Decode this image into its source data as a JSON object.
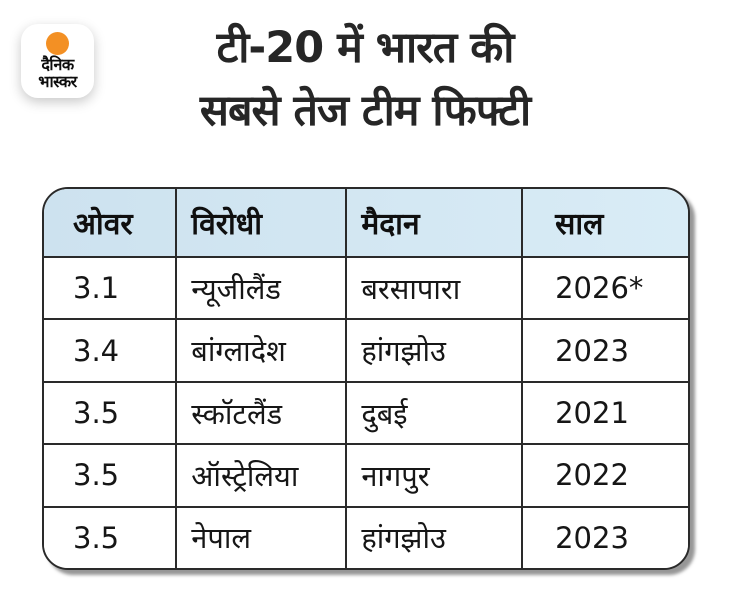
{
  "brand": {
    "name_line1": "दैनिक",
    "name_line2": "भास्कर",
    "sun_color": "#f39024"
  },
  "title": {
    "line1": "टी-20 में भारत की",
    "line2": "सबसे तेज टीम फिफ्टी"
  },
  "chart_data": {
    "type": "table",
    "title": "टी-20 में भारत की सबसे तेज टीम फिफ्टी",
    "columns": [
      "ओवर",
      "विरोधी",
      "मैदान",
      "साल"
    ],
    "rows": [
      [
        "3.1",
        "न्यूजीलैंड",
        "बरसापारा",
        "2026*"
      ],
      [
        "3.4",
        "बांग्लादेश",
        "हांगझोउ",
        "2023"
      ],
      [
        "3.5",
        "स्कॉटलैंड",
        "दुबई",
        "2021"
      ],
      [
        "3.5",
        "ऑस्ट्रेलिया",
        "नागपुर",
        "2022"
      ],
      [
        "3.5",
        "नेपाल",
        "हांगझोउ",
        "2023"
      ]
    ],
    "layout_hints": {
      "header_bg": "#cfe3ef",
      "border_color": "#2a2a2a",
      "rounded_corners": true,
      "rows_highlighted": "none"
    }
  },
  "colors": {
    "header_bg": "#cfe3ef",
    "border": "#2a2a2a",
    "accent_orange": "#f39024",
    "text": "#1c1c1c",
    "background": "#ffffff"
  }
}
